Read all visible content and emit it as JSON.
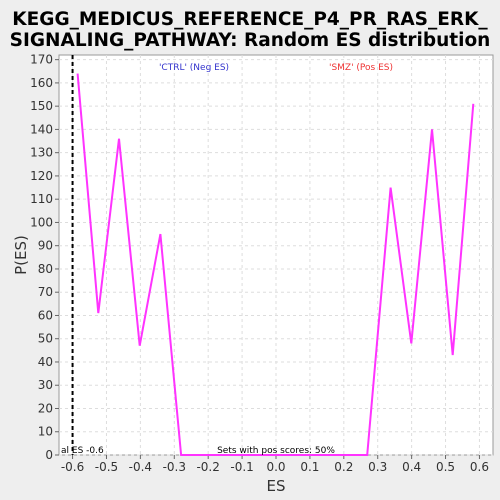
{
  "chart_data": {
    "type": "line",
    "title_lines": [
      "KEGG_MEDICUS_REFERENCE_P4_PR_RAS_ERK_",
      "SIGNALING_PATHWAY: Random ES distribution"
    ],
    "xlabel": "ES",
    "ylabel": "P(ES)",
    "xlim": [
      -0.64,
      0.64
    ],
    "ylim": [
      0,
      172
    ],
    "xticks": [
      -0.6,
      -0.5,
      -0.4,
      -0.3,
      -0.2,
      -0.1,
      0.0,
      0.1,
      0.2,
      0.3,
      0.4,
      0.5,
      0.6
    ],
    "xtick_labels": [
      "-0.6",
      "-0.5",
      "-0.4",
      "-0.3",
      "-0.2",
      "-0.1",
      "0.0",
      "0.1",
      "0.2",
      "0.3",
      "0.4",
      "0.5",
      "0.6"
    ],
    "yticks": [
      0,
      10,
      20,
      30,
      40,
      50,
      60,
      70,
      80,
      90,
      100,
      110,
      120,
      130,
      140,
      150,
      160,
      170
    ],
    "ytick_labels": [
      "0",
      "10",
      "20",
      "30",
      "40",
      "50",
      "60",
      "70",
      "80",
      "90",
      "100",
      "110",
      "120",
      "130",
      "140",
      "150",
      "160",
      "170"
    ],
    "grid": true,
    "series": [
      {
        "color": "#ff33ff",
        "x": [
          -0.585,
          -0.524,
          -0.463,
          -0.402,
          -0.341,
          -0.28,
          -0.219,
          -0.158,
          -0.097,
          -0.036,
          0.025,
          0.086,
          0.147,
          0.208,
          0.269,
          0.338,
          0.399,
          0.46,
          0.521,
          0.582
        ],
        "y": [
          164,
          61,
          136,
          47,
          95,
          0,
          0,
          0,
          0,
          0,
          0,
          0,
          0,
          0,
          0,
          115,
          48,
          140,
          43,
          151
        ]
      }
    ],
    "vline": {
      "x": -0.6,
      "label": "al ES -0.6",
      "style": "dashed",
      "color": "#000000"
    },
    "annotations": [
      {
        "text": "'CTRL' (Neg ES)",
        "color": "#3333cc"
      },
      {
        "text": "'SMZ' (Pos ES)",
        "color": "#ee3333"
      },
      {
        "text": "Sets with pos scores: 50%",
        "color": "#000000"
      }
    ],
    "colors": {
      "background": "#eeeeee",
      "plot_background": "#ffffff",
      "grid": "#dddddd"
    }
  }
}
